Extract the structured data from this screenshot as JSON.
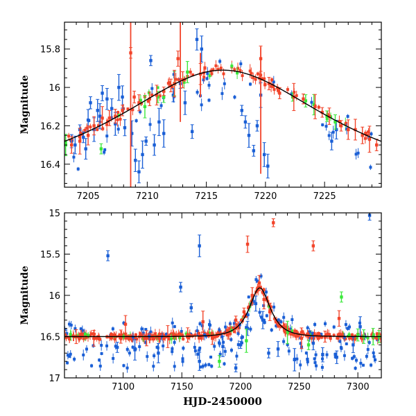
{
  "chart_data": [
    {
      "type": "scatter",
      "panel": "top",
      "ylabel": "Magnitude",
      "xlim": [
        7203,
        7229.8
      ],
      "ylim": [
        16.52,
        15.66
      ],
      "y_inverted": true,
      "x_ticks": [
        7205,
        7210,
        7215,
        7220,
        7225
      ],
      "y_ticks": [
        "15.8",
        "16",
        "16.2",
        "16.4"
      ],
      "y_tick_values": [
        15.8,
        16.0,
        16.2,
        16.4
      ],
      "model_curve": {
        "color": "#000000",
        "peak_x": 7216.4,
        "peak_mag": 15.91,
        "base_mag": 16.5,
        "tE": 13.3
      },
      "series": [
        {
          "name": "blue",
          "color": "#1a5fd6",
          "points": [
            [
              7203.6,
              16.28
            ],
            [
              7203.9,
              16.3
            ],
            [
              7204.3,
              16.22
            ],
            [
              7204.6,
              16.26
            ],
            [
              7204.8,
              16.32
            ],
            [
              7205.0,
              16.17
            ],
            [
              7205.2,
              16.08
            ],
            [
              7205.5,
              16.22
            ],
            [
              7205.8,
              16.12
            ],
            [
              7206.0,
              16.15
            ],
            [
              7206.2,
              16.03
            ],
            [
              7206.6,
              16.06
            ],
            [
              7207.0,
              16.11
            ],
            [
              7207.3,
              16.19
            ],
            [
              7207.6,
              16.0
            ],
            [
              7207.9,
              16.05
            ],
            [
              7208.1,
              16.21
            ],
            [
              7208.7,
              16.24
            ],
            [
              7209.0,
              16.38
            ],
            [
              7209.3,
              16.44
            ],
            [
              7209.6,
              16.35
            ],
            [
              7209.9,
              16.28
            ],
            [
              7210.3,
              15.86
            ],
            [
              7210.6,
              16.3
            ],
            [
              7211.0,
              16.18
            ],
            [
              7211.4,
              16.24
            ],
            [
              7212.2,
              16.04
            ],
            [
              7212.8,
              15.98
            ],
            [
              7213.2,
              16.08
            ],
            [
              7213.8,
              16.23
            ],
            [
              7214.2,
              15.75
            ],
            [
              7214.6,
              15.8
            ],
            [
              7218.0,
              16.12
            ],
            [
              7218.3,
              16.18
            ],
            [
              7218.6,
              16.25
            ],
            [
              7219.0,
              16.33
            ],
            [
              7219.3,
              16.2
            ],
            [
              7219.6,
              16.04
            ],
            [
              7219.9,
              16.35
            ],
            [
              7220.2,
              16.41
            ],
            [
              7225.6,
              16.28
            ],
            [
              7226.0,
              16.22
            ]
          ]
        },
        {
          "name": "green",
          "color": "#3ae83a",
          "points": [
            [
              7203.1,
              16.3
            ],
            [
              7206.1,
              16.32
            ],
            [
              7209.8,
              16.1
            ],
            [
              7210.9,
              16.05
            ],
            [
              7211.4,
              16.05
            ],
            [
              7212.3,
              15.98
            ],
            [
              7213.4,
              15.92
            ],
            [
              7222.3,
              16.05
            ],
            [
              7223.4,
              16.07
            ],
            [
              7224.1,
              16.09
            ],
            [
              7225.2,
              16.15
            ],
            [
              7225.9,
              16.18
            ]
          ]
        },
        {
          "name": "red",
          "color": "#f2442a",
          "points": [
            [
              7203.6,
              16.3
            ],
            [
              7204.3,
              16.28
            ],
            [
              7205.0,
              16.25
            ],
            [
              7205.5,
              16.2
            ],
            [
              7206.2,
              16.16
            ],
            [
              7206.8,
              16.16
            ],
            [
              7207.3,
              16.15
            ],
            [
              7207.9,
              16.12
            ],
            [
              7208.6,
              15.82
            ],
            [
              7208.9,
              16.05
            ],
            [
              7209.3,
              16.08
            ],
            [
              7210.2,
              16.06
            ],
            [
              7210.8,
              16.04
            ],
            [
              7211.4,
              16.02
            ],
            [
              7212.0,
              15.99
            ],
            [
              7212.3,
              15.98
            ],
            [
              7212.6,
              15.85
            ],
            [
              7213.0,
              15.96
            ],
            [
              7214.5,
              15.93
            ],
            [
              7219.6,
              15.85
            ],
            [
              7220.3,
              15.98
            ],
            [
              7221.2,
              16.03
            ],
            [
              7222.4,
              16.05
            ],
            [
              7223.2,
              16.06
            ],
            [
              7224.2,
              16.1
            ],
            [
              7224.8,
              16.13
            ],
            [
              7225.4,
              16.15
            ],
            [
              7226.4,
              16.2
            ],
            [
              7227.0,
              16.22
            ],
            [
              7227.6,
              16.22
            ],
            [
              7228.2,
              16.25
            ],
            [
              7228.8,
              16.27
            ],
            [
              7229.4,
              16.3
            ]
          ]
        }
      ]
    },
    {
      "type": "scatter",
      "panel": "bottom",
      "xlabel": "HJD-2450000",
      "ylabel": "Magnitude",
      "xlim": [
        7050,
        7320
      ],
      "ylim": [
        17.0,
        15.0
      ],
      "y_inverted": true,
      "x_ticks": [
        7100,
        7150,
        7200,
        7250,
        7300
      ],
      "y_ticks": [
        "15",
        "15.5",
        "16",
        "16.5",
        "17"
      ],
      "y_tick_values": [
        15.0,
        15.5,
        16.0,
        16.5,
        17.0
      ],
      "model_curve": {
        "color": "#000000",
        "peak_x": 7216.4,
        "peak_mag": 15.91,
        "base_mag": 16.5,
        "tE": 13.3
      },
      "series": [
        {
          "name": "blue",
          "color": "#1a5fd6",
          "points": [
            [
              7087,
              15.52
            ],
            [
              7165,
              15.4
            ],
            [
              7149,
              15.9
            ],
            [
              7158,
              16.15
            ],
            [
              7310,
              15.03
            ],
            [
              7095,
              16.63
            ],
            [
              7110,
              16.66
            ],
            [
              7130,
              16.7
            ],
            [
              7165,
              16.8
            ],
            [
              7185,
              16.62
            ],
            [
              7196,
              16.88
            ],
            [
              7200,
              16.6
            ],
            [
              7206,
              16.4
            ],
            [
              7213,
              16.1
            ],
            [
              7219,
              16.3
            ],
            [
              7224,
              16.7
            ],
            [
              7232,
              16.65
            ],
            [
              7246,
              16.78
            ],
            [
              7262,
              16.58
            ],
            [
              7270,
              16.72
            ],
            [
              7282,
              16.75
            ],
            [
              7296,
              16.6
            ],
            [
              7302,
              16.38
            ]
          ]
        },
        {
          "name": "green",
          "color": "#3ae83a",
          "points": [
            [
              7182,
              16.8
            ],
            [
              7205,
              16.55
            ],
            [
              7240,
              16.45
            ],
            [
              7258,
              16.6
            ],
            [
              7286,
              16.02
            ],
            [
              7300,
              16.48
            ],
            [
              7305,
              16.5
            ],
            [
              7313,
              16.5
            ],
            [
              7318,
              16.5
            ]
          ]
        },
        {
          "name": "red",
          "color": "#f2442a",
          "points": [
            [
              7060,
              16.5
            ],
            [
              7075,
              16.52
            ],
            [
              7098,
              16.5
            ],
            [
              7102,
              16.35
            ],
            [
              7120,
              16.52
            ],
            [
              7138,
              16.5
            ],
            [
              7155,
              16.48
            ],
            [
              7168,
              16.32
            ],
            [
              7176,
              16.52
            ],
            [
              7190,
              16.46
            ],
            [
              7196,
              16.3
            ],
            [
              7203,
              16.2
            ],
            [
              7206,
              15.38
            ],
            [
              7210,
              16.0
            ],
            [
              7216,
              15.85
            ],
            [
              7220,
              16.05
            ],
            [
              7225,
              16.2
            ],
            [
              7228,
              15.12
            ],
            [
              7238,
              16.4
            ],
            [
              7252,
              16.52
            ],
            [
              7262,
              15.4
            ],
            [
              7272,
              16.5
            ],
            [
              7284,
              16.28
            ]
          ]
        }
      ]
    }
  ]
}
